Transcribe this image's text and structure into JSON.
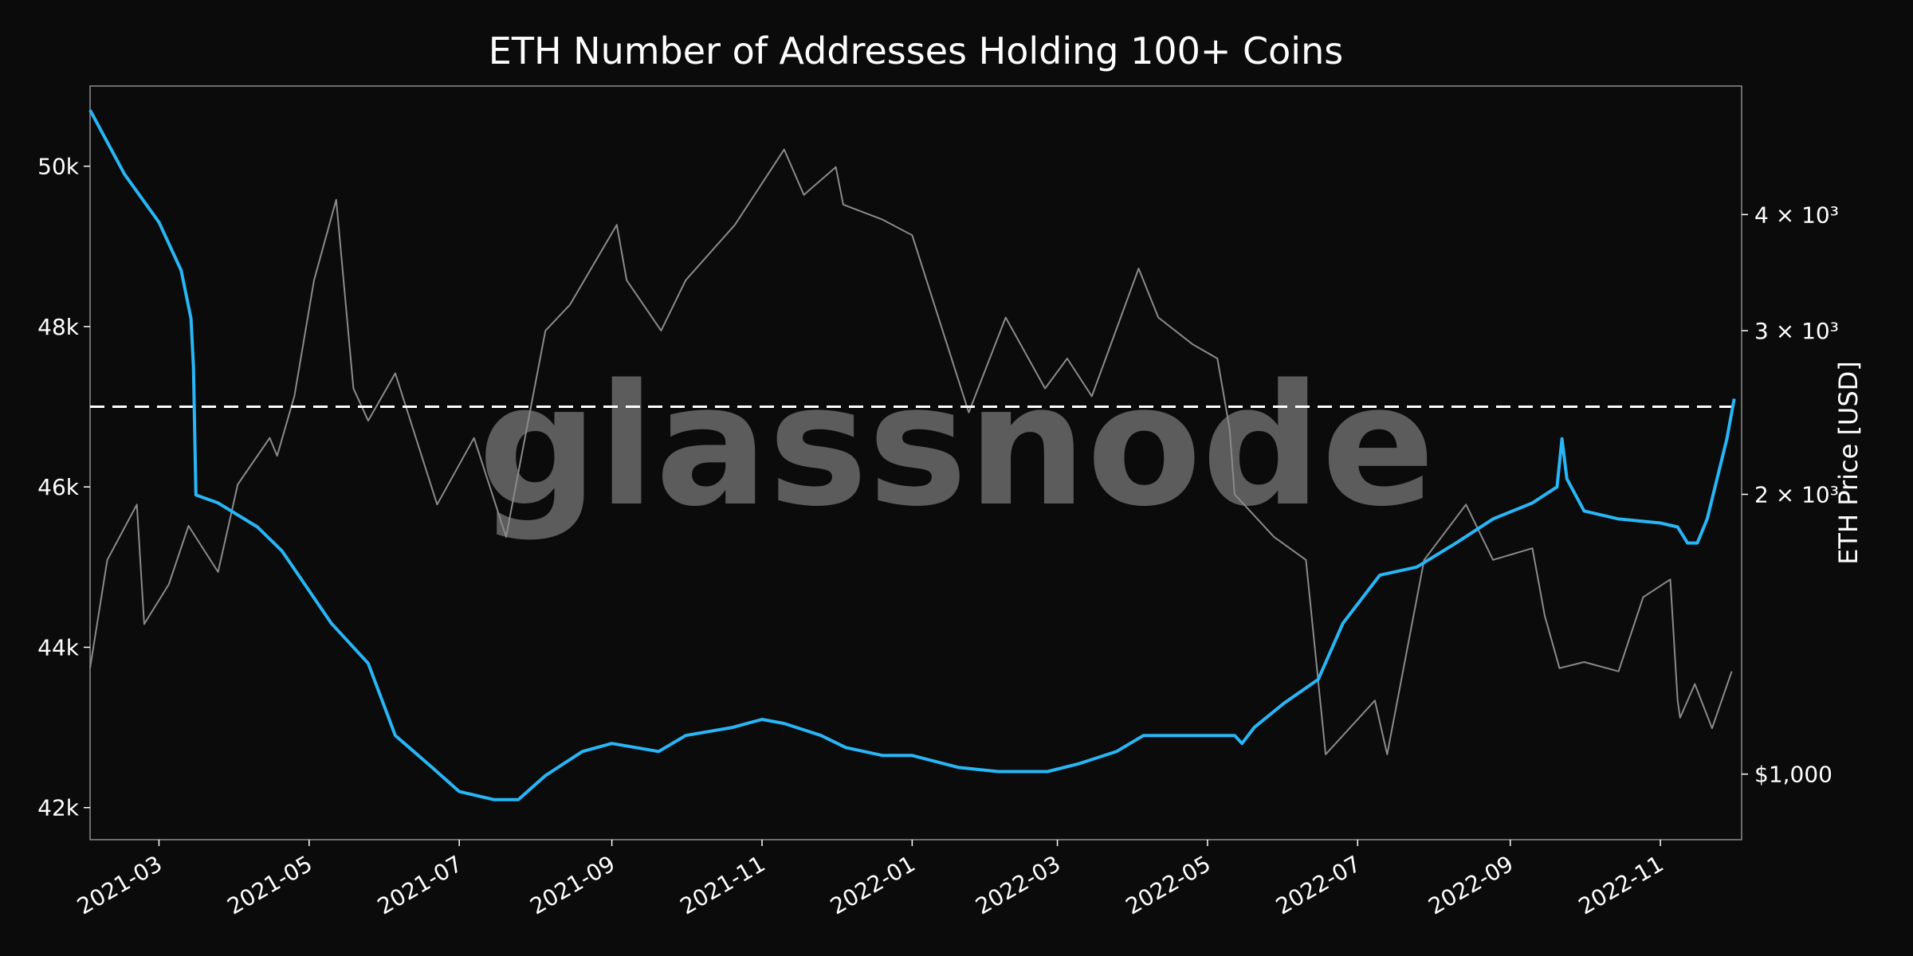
{
  "chart_data": {
    "type": "line",
    "title": "ETH Number of Addresses Holding 100+ Coins",
    "watermark": "glassnode",
    "xlabel": "",
    "ylabel_left": "",
    "ylabel_right": "ETH Price [USD]",
    "x_ticks": [
      "2021-03",
      "2021-05",
      "2021-07",
      "2021-09",
      "2021-11",
      "2022-01",
      "2022-03",
      "2022-05",
      "2022-07",
      "2022-09",
      "2022-11"
    ],
    "x_range": [
      "2021-02-01",
      "2022-12-04"
    ],
    "y_left": {
      "range": [
        41600,
        51000
      ],
      "ticks": [
        42000,
        44000,
        46000,
        48000,
        50000
      ],
      "tick_labels": [
        "42k",
        "44k",
        "46k",
        "48k",
        "50k"
      ]
    },
    "y_right": {
      "scale": "log",
      "range": [
        850,
        5500
      ],
      "ticks": [
        1000,
        2000,
        3000,
        4000
      ],
      "tick_labels": [
        "$1,000",
        "2 × 10³",
        "3 × 10³",
        "4 × 10³"
      ]
    },
    "reference_line": {
      "value": 47000,
      "style": "dashed",
      "color": "#ffffff"
    },
    "series": [
      {
        "axis": "left",
        "color": "#29b6f6",
        "x": [
          "2021-02-01",
          "2021-02-15",
          "2021-03-01",
          "2021-03-10",
          "2021-03-14",
          "2021-03-15",
          "2021-03-16",
          "2021-03-25",
          "2021-04-10",
          "2021-04-20",
          "2021-05-10",
          "2021-05-25",
          "2021-06-05",
          "2021-06-20",
          "2021-07-01",
          "2021-07-15",
          "2021-07-25",
          "2021-08-05",
          "2021-08-20",
          "2021-09-01",
          "2021-09-20",
          "2021-10-01",
          "2021-10-20",
          "2021-11-01",
          "2021-11-10",
          "2021-11-25",
          "2021-12-05",
          "2021-12-20",
          "2022-01-01",
          "2022-01-20",
          "2022-02-05",
          "2022-02-25",
          "2022-03-10",
          "2022-03-25",
          "2022-04-05",
          "2022-04-20",
          "2022-05-05",
          "2022-05-12",
          "2022-05-15",
          "2022-05-20",
          "2022-06-01",
          "2022-06-15",
          "2022-06-25",
          "2022-07-10",
          "2022-07-25",
          "2022-08-10",
          "2022-08-25",
          "2022-09-10",
          "2022-09-20",
          "2022-09-22",
          "2022-09-24",
          "2022-10-01",
          "2022-10-15",
          "2022-11-01",
          "2022-11-08",
          "2022-11-12",
          "2022-11-16",
          "2022-11-20",
          "2022-11-28",
          "2022-12-01"
        ],
        "values": [
          50700,
          49900,
          49300,
          48700,
          48100,
          47500,
          45900,
          45800,
          45500,
          45200,
          44300,
          43800,
          42900,
          42500,
          42200,
          42100,
          42100,
          42400,
          42700,
          42800,
          42700,
          42900,
          43000,
          43100,
          43050,
          42900,
          42750,
          42650,
          42650,
          42500,
          42450,
          42450,
          42550,
          42700,
          42900,
          42900,
          42900,
          42900,
          42800,
          43000,
          43300,
          43600,
          44300,
          44900,
          45000,
          45300,
          45600,
          45800,
          46000,
          46600,
          46100,
          45700,
          45600,
          45550,
          45500,
          45300,
          45300,
          45600,
          46600,
          47100
        ]
      },
      {
        "axis": "right",
        "color": "#8a8a8a",
        "x": [
          "2021-02-01",
          "2021-02-08",
          "2021-02-20",
          "2021-02-23",
          "2021-03-05",
          "2021-03-13",
          "2021-03-25",
          "2021-04-02",
          "2021-04-15",
          "2021-04-18",
          "2021-04-25",
          "2021-05-03",
          "2021-05-12",
          "2021-05-19",
          "2021-05-25",
          "2021-06-05",
          "2021-06-22",
          "2021-07-07",
          "2021-07-20",
          "2021-08-05",
          "2021-08-15",
          "2021-09-03",
          "2021-09-07",
          "2021-09-21",
          "2021-10-01",
          "2021-10-21",
          "2021-11-10",
          "2021-11-18",
          "2021-12-01",
          "2021-12-04",
          "2021-12-20",
          "2022-01-01",
          "2022-01-10",
          "2022-01-24",
          "2022-02-08",
          "2022-02-24",
          "2022-03-05",
          "2022-03-15",
          "2022-04-03",
          "2022-04-11",
          "2022-04-25",
          "2022-05-05",
          "2022-05-10",
          "2022-05-12",
          "2022-05-28",
          "2022-06-10",
          "2022-06-18",
          "2022-07-08",
          "2022-07-13",
          "2022-07-28",
          "2022-08-14",
          "2022-08-25",
          "2022-09-10",
          "2022-09-15",
          "2022-09-21",
          "2022-10-01",
          "2022-10-15",
          "2022-10-25",
          "2022-11-05",
          "2022-11-08",
          "2022-11-09",
          "2022-11-15",
          "2022-11-22",
          "2022-11-30"
        ],
        "values": [
          1300,
          1700,
          1950,
          1450,
          1600,
          1850,
          1650,
          2050,
          2300,
          2200,
          2550,
          3400,
          4150,
          2600,
          2400,
          2700,
          1950,
          2300,
          1800,
          3000,
          3200,
          3900,
          3400,
          3000,
          3400,
          3900,
          4700,
          4200,
          4500,
          4100,
          3950,
          3800,
          3200,
          2450,
          3100,
          2600,
          2800,
          2550,
          3500,
          3100,
          2900,
          2800,
          2350,
          2000,
          1800,
          1700,
          1050,
          1200,
          1050,
          1700,
          1950,
          1700,
          1750,
          1480,
          1300,
          1320,
          1290,
          1550,
          1620,
          1200,
          1150,
          1250,
          1120,
          1290
        ]
      }
    ]
  }
}
